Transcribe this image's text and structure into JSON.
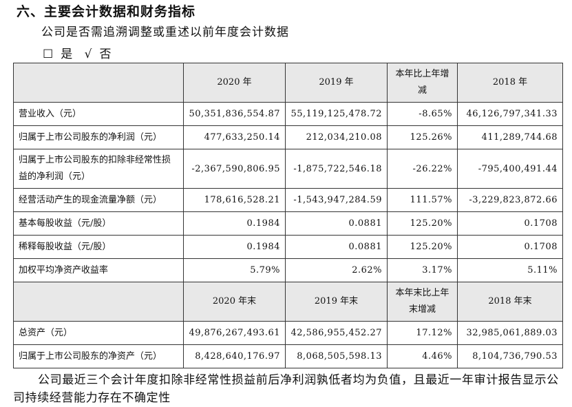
{
  "section_heading": "六、主要会计数据和财务指标",
  "question": "公司是否需追溯调整或重述以前年度会计数据",
  "options": {
    "yes_box": "☐",
    "yes_label": "是",
    "no_box": "√",
    "no_label": "否"
  },
  "table": {
    "header1": [
      "",
      "2020 年",
      "2019 年",
      "本年比上年增减",
      "2018 年"
    ],
    "rows1": [
      [
        "营业收入（元）",
        "50,351,836,554.87",
        "55,119,125,478.72",
        "-8.65%",
        "46,126,797,341.33"
      ],
      [
        "归属于上市公司股东的净利润（元）",
        "477,633,250.14",
        "212,034,210.08",
        "125.26%",
        "411,289,744.68"
      ],
      [
        "归属于上市公司股东的扣除非经常性损益的净利润（元）",
        "-2,367,590,806.95",
        "-1,875,722,546.18",
        "-26.22%",
        "-795,400,491.44"
      ],
      [
        "经营活动产生的现金流量净额（元）",
        "178,616,528.21",
        "-1,543,947,284.59",
        "111.57%",
        "-3,229,823,872.66"
      ],
      [
        "基本每股收益（元/股）",
        "0.1984",
        "0.0881",
        "125.20%",
        "0.1708"
      ],
      [
        "稀释每股收益（元/股）",
        "0.1984",
        "0.0881",
        "125.20%",
        "0.1708"
      ],
      [
        "加权平均净资产收益率",
        "5.79%",
        "2.62%",
        "3.17%",
        "5.11%"
      ]
    ],
    "header2": [
      "",
      "2020 年末",
      "2019 年末",
      "本年末比上年末增减",
      "2018 年末"
    ],
    "rows2": [
      [
        "总资产（元）",
        "49,876,267,493.61",
        "42,586,955,452.27",
        "17.12%",
        "32,985,061,889.03"
      ],
      [
        "归属于上市公司股东的净资产（元）",
        "8,428,640,176.97",
        "8,068,505,598.13",
        "4.46%",
        "8,104,736,790.53"
      ]
    ]
  },
  "footer": "公司最近三个会计年度扣除非经常性损益前后净利润孰低者均为负值，且最近一年审计报告显示公司持续经营能力存在不确定性"
}
